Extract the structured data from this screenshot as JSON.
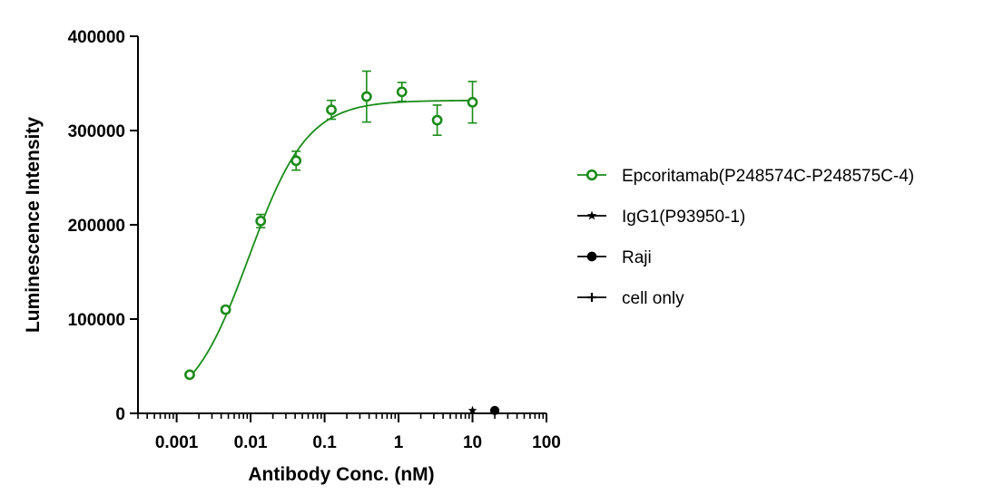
{
  "chart_data": {
    "type": "scatter",
    "title": "",
    "xlabel": "Antibody Conc. (nM)",
    "ylabel": "Luminescence Intensity",
    "xscale": "log",
    "xlim": [
      0.0003,
      100
    ],
    "ylim": [
      0,
      400000
    ],
    "x_ticks": [
      0.001,
      0.01,
      0.1,
      1,
      10,
      100
    ],
    "x_tick_labels": [
      "0.001",
      "0.01",
      "0.1",
      "1",
      "10",
      "100"
    ],
    "y_ticks": [
      0,
      100000,
      200000,
      300000,
      400000
    ],
    "y_tick_labels": [
      "0",
      "100000",
      "200000",
      "300000",
      "400000"
    ],
    "grid": false,
    "legend_position": "right",
    "series": [
      {
        "name": "Epcoritamab(P248574C-P248575C-4)",
        "color": "#1a8c1a",
        "marker": "open-circle",
        "x": [
          0.0015,
          0.0046,
          0.0137,
          0.0412,
          0.1235,
          0.37,
          1.11,
          3.33,
          10
        ],
        "y": [
          41000,
          110000,
          204000,
          268000,
          322000,
          336000,
          341000,
          311000,
          330000
        ],
        "error": [
          2000,
          3000,
          7000,
          10000,
          10000,
          27000,
          10000,
          16000,
          22000
        ],
        "fit": {
          "model": "4PL",
          "bottom": 0,
          "top": 332000,
          "ec50": 0.0095,
          "hill": 1.1
        }
      },
      {
        "name": "IgG1(P93950-1)",
        "color": "#000000",
        "marker": "star",
        "x": [
          10
        ],
        "y": [
          3000
        ]
      },
      {
        "name": "Raji",
        "color": "#000000",
        "marker": "filled-circle",
        "x": [
          20
        ],
        "y": [
          3000
        ]
      },
      {
        "name": "cell only",
        "color": "#000000",
        "marker": "cross",
        "x": [],
        "y": []
      }
    ]
  }
}
